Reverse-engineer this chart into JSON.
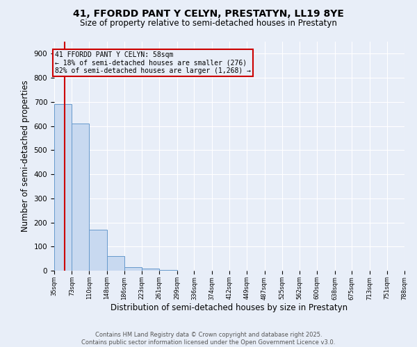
{
  "title_line1": "41, FFORDD PANT Y CELYN, PRESTATYN, LL19 8YE",
  "title_line2": "Size of property relative to semi-detached houses in Prestatyn",
  "xlabel": "Distribution of semi-detached houses by size in Prestatyn",
  "ylabel": "Number of semi-detached properties",
  "bins": [
    35,
    73,
    110,
    148,
    186,
    223,
    261,
    299,
    336,
    374,
    412,
    449,
    487,
    525,
    562,
    600,
    638,
    675,
    713,
    751,
    788
  ],
  "counts": [
    690,
    610,
    170,
    60,
    15,
    8,
    2,
    1,
    0,
    0,
    0,
    0,
    0,
    0,
    0,
    0,
    0,
    0,
    0,
    0
  ],
  "bar_color": "#c8d9f0",
  "bar_edgecolor": "#6699cc",
  "property_size": 58,
  "vline_color": "#cc0000",
  "annotation_text": "41 FFORDD PANT Y CELYN: 58sqm\n← 18% of semi-detached houses are smaller (276)\n82% of semi-detached houses are larger (1,268) →",
  "annotation_box_edgecolor": "#cc0000",
  "ylim": [
    0,
    950
  ],
  "yticks": [
    0,
    100,
    200,
    300,
    400,
    500,
    600,
    700,
    800,
    900
  ],
  "footer_line1": "Contains HM Land Registry data © Crown copyright and database right 2025.",
  "footer_line2": "Contains public sector information licensed under the Open Government Licence v3.0.",
  "bg_color": "#e8eef8",
  "grid_color": "#ffffff"
}
